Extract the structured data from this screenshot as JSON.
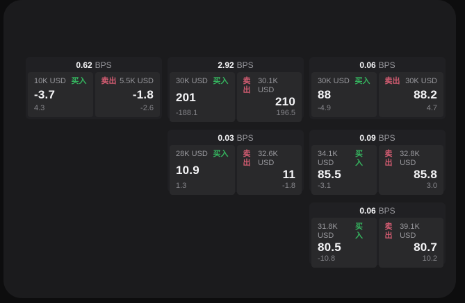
{
  "colors": {
    "page_bg": "#0d0d0e",
    "panel_bg": "#1b1b1d",
    "card_bg": "#202023",
    "cell_bg": "#29292b",
    "text_primary": "#f5f5f7",
    "text_secondary": "#98989d",
    "text_dim": "#85858a",
    "buy_green": "#35b55f",
    "sell_red": "#d45c72"
  },
  "labels": {
    "bps_unit": "BPS",
    "buy": "买入",
    "sell": "卖出"
  },
  "cards": [
    {
      "row": 1,
      "col": 1,
      "bps": "0.62",
      "buy": {
        "notional": "10K USD",
        "price": "-3.7",
        "delta": "4.3"
      },
      "sell": {
        "notional": "5.5K USD",
        "price": "-1.8",
        "delta": "-2.6"
      }
    },
    {
      "row": 1,
      "col": 2,
      "bps": "2.92",
      "buy": {
        "notional": "30K USD",
        "price": "201",
        "delta": "-188.1"
      },
      "sell": {
        "notional": "30.1K USD",
        "price": "210",
        "delta": "196.5"
      }
    },
    {
      "row": 1,
      "col": 3,
      "bps": "0.06",
      "buy": {
        "notional": "30K USD",
        "price": "88",
        "delta": "-4.9"
      },
      "sell": {
        "notional": "30K USD",
        "price": "88.2",
        "delta": "4.7"
      }
    },
    {
      "row": 2,
      "col": 2,
      "bps": "0.03",
      "buy": {
        "notional": "28K USD",
        "price": "10.9",
        "delta": "1.3"
      },
      "sell": {
        "notional": "32.6K USD",
        "price": "11",
        "delta": "-1.8"
      }
    },
    {
      "row": 2,
      "col": 3,
      "bps": "0.09",
      "buy": {
        "notional": "34.1K USD",
        "price": "85.5",
        "delta": "-3.1"
      },
      "sell": {
        "notional": "32.8K USD",
        "price": "85.8",
        "delta": "3.0"
      }
    },
    {
      "row": 3,
      "col": 3,
      "bps": "0.06",
      "buy": {
        "notional": "31.8K USD",
        "price": "80.5",
        "delta": "-10.8"
      },
      "sell": {
        "notional": "39.1K USD",
        "price": "80.7",
        "delta": "10.2"
      }
    }
  ]
}
